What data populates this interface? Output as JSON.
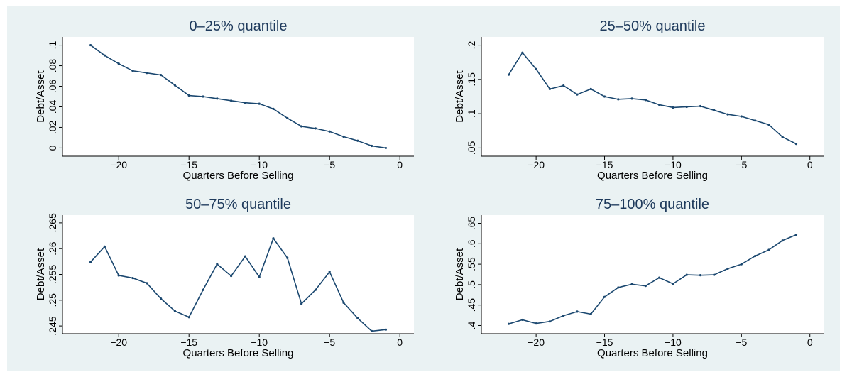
{
  "chart_data": [
    {
      "type": "line",
      "title": "0–25% quantile",
      "x_label": "Quarters Before Selling",
      "y_label": "Debt/Asset",
      "color": "#1a476f",
      "x": [
        -22,
        -21,
        -20,
        -19,
        -18,
        -17,
        -16,
        -15,
        -14,
        -13,
        -12,
        -11,
        -10,
        -9,
        -8,
        -7,
        -6,
        -5,
        -4,
        -3,
        -2,
        -1
      ],
      "values": [
        0.1,
        0.09,
        0.082,
        0.075,
        0.073,
        0.071,
        0.061,
        0.051,
        0.05,
        0.048,
        0.046,
        0.044,
        0.043,
        0.038,
        0.029,
        0.021,
        0.019,
        0.016,
        0.011,
        0.007,
        0.002,
        0
      ],
      "xlim": [
        -24,
        1
      ],
      "ylim": [
        -0.008,
        0.108
      ],
      "xticks": [
        {
          "value": -20,
          "label": "−20"
        },
        {
          "value": -15,
          "label": "−15"
        },
        {
          "value": -10,
          "label": "−10"
        },
        {
          "value": -5,
          "label": "−5"
        },
        0
      ],
      "yticks": [
        0,
        {
          "value": 0.02,
          "label": ".02"
        },
        {
          "value": 0.04,
          "label": ".04"
        },
        {
          "value": 0.06,
          "label": ".06"
        },
        {
          "value": 0.08,
          "label": ".08"
        },
        {
          "value": 0.1,
          "label": ".1"
        }
      ]
    },
    {
      "type": "line",
      "title": "25–50% quantile",
      "x_label": "Quarters Before Selling",
      "y_label": "Debt/Asset",
      "color": "#1a476f",
      "x": [
        -22,
        -21,
        -20,
        -19,
        -18,
        -17,
        -16,
        -15,
        -14,
        -13,
        -12,
        -11,
        -10,
        -9,
        -8,
        -7,
        -6,
        -5,
        -4,
        -3,
        -2,
        -1
      ],
      "values": [
        0.157,
        0.189,
        0.165,
        0.136,
        0.141,
        0.128,
        0.136,
        0.125,
        0.121,
        0.122,
        0.12,
        0.113,
        0.109,
        0.11,
        0.111,
        0.105,
        0.099,
        0.096,
        0.09,
        0.084,
        0.066,
        0.056
      ],
      "xlim": [
        -24,
        1
      ],
      "ylim": [
        0.038,
        0.212
      ],
      "xticks": [
        {
          "value": -20,
          "label": "−20"
        },
        {
          "value": -15,
          "label": "−15"
        },
        {
          "value": -10,
          "label": "−10"
        },
        {
          "value": -5,
          "label": "−5"
        },
        0
      ],
      "yticks": [
        {
          "value": 0.05,
          "label": ".05"
        },
        {
          "value": 0.1,
          "label": ".1"
        },
        {
          "value": 0.15,
          "label": ".15"
        },
        {
          "value": 0.2,
          "label": ".2"
        }
      ]
    },
    {
      "type": "line",
      "title": "50–75% quantile",
      "x_label": "Quarters Before Selling",
      "y_label": "Debt/Asset",
      "color": "#1a476f",
      "x": [
        -22,
        -21,
        -20,
        -19,
        -18,
        -17,
        -16,
        -15,
        -14,
        -13,
        -12,
        -11,
        -10,
        -9,
        -8,
        -7,
        -6,
        -5,
        -4,
        -3,
        -2,
        -1
      ],
      "values": [
        0.2574,
        0.2604,
        0.2548,
        0.2543,
        0.2533,
        0.2503,
        0.2479,
        0.2467,
        0.252,
        0.257,
        0.2547,
        0.2585,
        0.2545,
        0.262,
        0.2582,
        0.2493,
        0.252,
        0.2555,
        0.2495,
        0.2465,
        0.244,
        0.2443
      ],
      "xlim": [
        -24,
        1
      ],
      "ylim": [
        0.2435,
        0.2665
      ],
      "xticks": [
        {
          "value": -20,
          "label": "−20"
        },
        {
          "value": -15,
          "label": "−15"
        },
        {
          "value": -10,
          "label": "−10"
        },
        {
          "value": -5,
          "label": "−5"
        },
        0
      ],
      "yticks": [
        {
          "value": 0.245,
          "label": ".245"
        },
        {
          "value": 0.25,
          "label": ".25"
        },
        {
          "value": 0.255,
          "label": ".255"
        },
        {
          "value": 0.26,
          "label": ".26"
        },
        {
          "value": 0.265,
          "label": ".265"
        }
      ]
    },
    {
      "type": "line",
      "title": "75–100% quantile",
      "x_label": "Quarters Before Selling",
      "y_label": "Debt/Asset",
      "color": "#1a476f",
      "x": [
        -22,
        -21,
        -20,
        -19,
        -18,
        -17,
        -16,
        -15,
        -14,
        -13,
        -12,
        -11,
        -10,
        -9,
        -8,
        -7,
        -6,
        -5,
        -4,
        -3,
        -2,
        -1
      ],
      "values": [
        0.404,
        0.414,
        0.405,
        0.41,
        0.424,
        0.434,
        0.428,
        0.47,
        0.493,
        0.501,
        0.497,
        0.517,
        0.502,
        0.524,
        0.523,
        0.524,
        0.539,
        0.55,
        0.57,
        0.585,
        0.608,
        0.622
      ],
      "xlim": [
        -24,
        1
      ],
      "ylim": [
        0.38,
        0.67
      ],
      "xticks": [
        {
          "value": -20,
          "label": "−20"
        },
        {
          "value": -15,
          "label": "−15"
        },
        {
          "value": -10,
          "label": "−10"
        },
        {
          "value": -5,
          "label": "−5"
        },
        0
      ],
      "yticks": [
        {
          "value": 0.4,
          "label": ".4"
        },
        {
          "value": 0.45,
          "label": ".45"
        },
        {
          "value": 0.5,
          "label": ".5"
        },
        {
          "value": 0.55,
          "label": ".55"
        },
        {
          "value": 0.6,
          "label": ".6"
        },
        {
          "value": 0.65,
          "label": ".65"
        }
      ]
    }
  ]
}
